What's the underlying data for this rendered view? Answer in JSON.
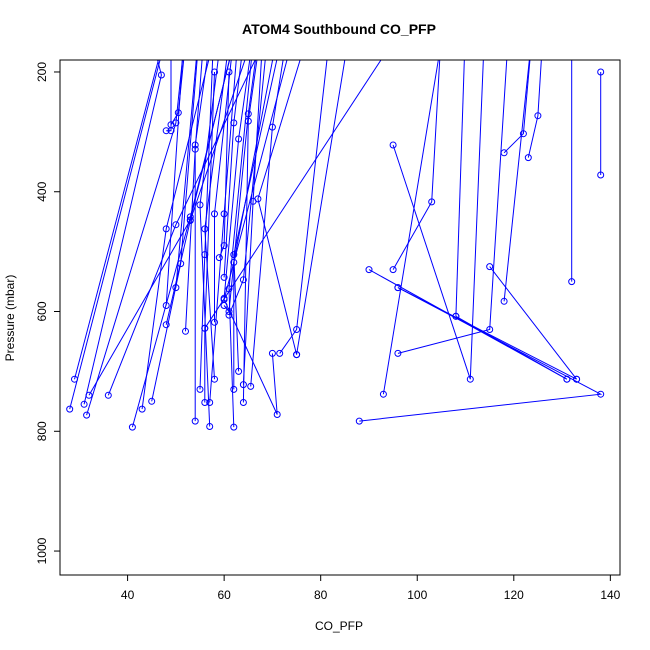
{
  "chart_data": {
    "type": "line",
    "title": "ATOM4 Southbound CO_PFP",
    "xlabel": "CO_PFP",
    "ylabel": "Pressure (mbar)",
    "xlim": [
      26,
      142
    ],
    "ylim": [
      1040,
      180
    ],
    "y_reversed": true,
    "xticks": [
      40,
      60,
      80,
      100,
      120,
      140
    ],
    "yticks": [
      200,
      400,
      600,
      800,
      1000
    ],
    "grid": false,
    "color": "#0000ff",
    "marker": "open-circle",
    "series": [
      {
        "points": [
          [
            29,
            713
          ],
          [
            49,
            100
          ]
        ]
      },
      {
        "points": [
          [
            28,
            763
          ],
          [
            48,
            140
          ]
        ]
      },
      {
        "points": [
          [
            31,
            755
          ],
          [
            47,
            205
          ],
          [
            44,
            110
          ]
        ]
      },
      {
        "points": [
          [
            31.5,
            773
          ],
          [
            50,
            285
          ],
          [
            52,
            130
          ]
        ]
      },
      {
        "points": [
          [
            32,
            740
          ],
          [
            53,
            447
          ],
          [
            62,
            150
          ]
        ]
      },
      {
        "points": [
          [
            36,
            740
          ],
          [
            50,
            455
          ],
          [
            70,
            120
          ]
        ]
      },
      {
        "points": [
          [
            41,
            793
          ],
          [
            53,
            442
          ],
          [
            63,
            120
          ]
        ]
      },
      {
        "points": [
          [
            43,
            763
          ],
          [
            48,
            462
          ],
          [
            59,
            110
          ]
        ]
      },
      {
        "points": [
          [
            45,
            750
          ],
          [
            51,
            520
          ],
          [
            55,
            120
          ]
        ]
      },
      {
        "points": [
          [
            48,
            298
          ],
          [
            49,
            298
          ],
          [
            49,
            120
          ]
        ]
      },
      {
        "points": [
          [
            48,
            590
          ],
          [
            52,
            100
          ]
        ]
      },
      {
        "points": [
          [
            48,
            622
          ],
          [
            53,
            448
          ],
          [
            66,
            140
          ]
        ]
      },
      {
        "points": [
          [
            49,
            288
          ],
          [
            50.5,
            268
          ],
          [
            52,
            150
          ]
        ]
      },
      {
        "points": [
          [
            50,
            560
          ],
          [
            55,
            110
          ]
        ]
      },
      {
        "points": [
          [
            52,
            633
          ],
          [
            54,
            329
          ],
          [
            56,
            120
          ]
        ]
      },
      {
        "points": [
          [
            54,
            783
          ],
          [
            54,
            322
          ],
          [
            57,
            150
          ]
        ]
      },
      {
        "points": [
          [
            55,
            730
          ],
          [
            56,
            505
          ],
          [
            58,
            100
          ]
        ]
      },
      {
        "points": [
          [
            56,
            752
          ],
          [
            56,
            628
          ],
          [
            58,
            200
          ]
        ]
      },
      {
        "points": [
          [
            57,
            792
          ],
          [
            55,
            422
          ],
          [
            60,
            100
          ]
        ]
      },
      {
        "points": [
          [
            57,
            752
          ],
          [
            60,
            437
          ],
          [
            63,
            130
          ]
        ]
      },
      {
        "points": [
          [
            58,
            713
          ],
          [
            56,
            462
          ],
          [
            61,
            150
          ]
        ]
      },
      {
        "points": [
          [
            58,
            618
          ],
          [
            58,
            437
          ],
          [
            62,
            140
          ]
        ]
      },
      {
        "points": [
          [
            59,
            510
          ],
          [
            60,
            490
          ],
          [
            61,
            200
          ]
        ]
      },
      {
        "points": [
          [
            60,
            543
          ],
          [
            62,
            285
          ],
          [
            64,
            150
          ]
        ]
      },
      {
        "points": [
          [
            60,
            578
          ],
          [
            63,
            312
          ],
          [
            66,
            140
          ]
        ]
      },
      {
        "points": [
          [
            60,
            590
          ],
          [
            61,
            600
          ],
          [
            65,
            270
          ],
          [
            67,
            150
          ]
        ]
      },
      {
        "points": [
          [
            61,
            606
          ],
          [
            64,
            547
          ],
          [
            69,
            140
          ]
        ]
      },
      {
        "points": [
          [
            62,
            793
          ],
          [
            61,
            562
          ],
          [
            66,
            150
          ]
        ]
      },
      {
        "points": [
          [
            62,
            730
          ],
          [
            62,
            518
          ],
          [
            71,
            140
          ]
        ]
      },
      {
        "points": [
          [
            63,
            700
          ],
          [
            62,
            505
          ],
          [
            72,
            140
          ]
        ]
      },
      {
        "points": [
          [
            64,
            722
          ],
          [
            66,
            416
          ],
          [
            68,
            140
          ]
        ]
      },
      {
        "points": [
          [
            64,
            752
          ],
          [
            65,
            282
          ],
          [
            68,
            110
          ]
        ]
      },
      {
        "points": [
          [
            65.5,
            725
          ],
          [
            70,
            292
          ],
          [
            73,
            140
          ]
        ]
      },
      {
        "points": [
          [
            70,
            670
          ],
          [
            71,
            772
          ],
          [
            60,
            580
          ],
          [
            74,
            150
          ]
        ]
      },
      {
        "points": [
          [
            71.5,
            670
          ],
          [
            75,
            630
          ],
          [
            82,
            130
          ]
        ]
      },
      {
        "points": [
          [
            75,
            672
          ],
          [
            67,
            412
          ],
          [
            78,
            120
          ]
        ]
      },
      {
        "points": [
          [
            75,
            672
          ],
          [
            86,
            130
          ]
        ]
      },
      {
        "points": [
          [
            56,
            628
          ],
          [
            99,
            100
          ]
        ]
      },
      {
        "points": [
          [
            88,
            783
          ],
          [
            138,
            738
          ],
          [
            96,
            560
          ]
        ]
      },
      {
        "points": [
          [
            93,
            738
          ],
          [
            106,
            100
          ]
        ]
      },
      {
        "points": [
          [
            95,
            322
          ],
          [
            111,
            713
          ],
          [
            114,
            120
          ]
        ]
      },
      {
        "points": [
          [
            96,
            670
          ],
          [
            115,
            630
          ],
          [
            119,
            120
          ]
        ]
      },
      {
        "points": [
          [
            95,
            530
          ],
          [
            103,
            417
          ],
          [
            105,
            130
          ]
        ]
      },
      {
        "points": [
          [
            108,
            608
          ],
          [
            110,
            120
          ]
        ]
      },
      {
        "points": [
          [
            115,
            525
          ],
          [
            133,
            713
          ]
        ]
      },
      {
        "points": [
          [
            118,
            335
          ],
          [
            122,
            303
          ],
          [
            124,
            120
          ]
        ]
      },
      {
        "points": [
          [
            118,
            583
          ],
          [
            124,
            120
          ]
        ]
      },
      {
        "points": [
          [
            123,
            343
          ],
          [
            125,
            273
          ],
          [
            126,
            140
          ]
        ]
      },
      {
        "points": [
          [
            131,
            713
          ],
          [
            90,
            530
          ]
        ]
      },
      {
        "points": [
          [
            132,
            550
          ],
          [
            132,
            140
          ]
        ]
      },
      {
        "points": [
          [
            138,
            372
          ],
          [
            138,
            200
          ]
        ]
      },
      {
        "points": [
          [
            108,
            608
          ],
          [
            131,
            713
          ]
        ]
      },
      {
        "points": [
          [
            96,
            560
          ],
          [
            133,
            713
          ]
        ]
      }
    ]
  }
}
